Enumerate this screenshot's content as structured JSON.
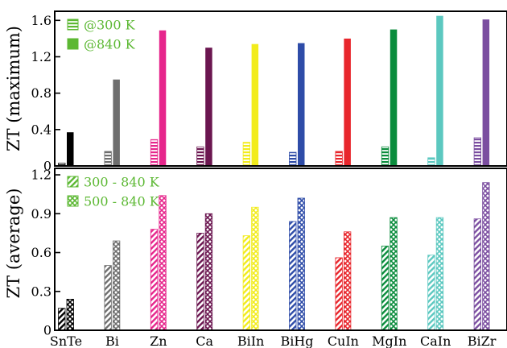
{
  "chart_data": [
    {
      "type": "bar",
      "ylabel": "ZT (maximum)",
      "ylim": [
        0,
        1.7
      ],
      "yticks": [
        "0",
        "0.4",
        "0.8",
        "1.2",
        "1.6"
      ],
      "ytick_values": [
        0,
        0.4,
        0.8,
        1.2,
        1.6
      ],
      "categories": [
        "SnTe",
        "Bi",
        "Zn",
        "Ca",
        "BiIn",
        "BiHg",
        "CuIn",
        "MgIn",
        "CaIn",
        "BiZr"
      ],
      "colors": [
        "#000000",
        "#6e6e6e",
        "#e6268c",
        "#6b1650",
        "#f2ec1c",
        "#2e4ca8",
        "#e8262c",
        "#0a8c3c",
        "#5cc8c0",
        "#7b4ea0"
      ],
      "legend_color": "#5cb833",
      "legend_placement": "top-left",
      "series": [
        {
          "name": "@300 K",
          "pattern": "horizontal-stripes",
          "values": [
            0.03,
            0.16,
            0.29,
            0.21,
            0.26,
            0.15,
            0.16,
            0.21,
            0.09,
            0.31
          ]
        },
        {
          "name": "@840 K",
          "pattern": "solid",
          "values": [
            0.37,
            0.95,
            1.49,
            1.3,
            1.34,
            1.35,
            1.4,
            1.5,
            1.65,
            1.61
          ]
        }
      ]
    },
    {
      "type": "bar",
      "ylabel": "ZT (average)",
      "ylim": [
        0,
        1.25
      ],
      "yticks": [
        "0",
        "0.3",
        "0.6",
        "0.9",
        "1.2"
      ],
      "ytick_values": [
        0,
        0.3,
        0.6,
        0.9,
        1.2
      ],
      "categories": [
        "SnTe",
        "Bi",
        "Zn",
        "Ca",
        "BiIn",
        "BiHg",
        "CuIn",
        "MgIn",
        "CaIn",
        "BiZr"
      ],
      "colors": [
        "#000000",
        "#6e6e6e",
        "#e6268c",
        "#6b1650",
        "#f2ec1c",
        "#2e4ca8",
        "#e8262c",
        "#0a8c3c",
        "#5cc8c0",
        "#7b4ea0"
      ],
      "legend_color": "#5cb833",
      "legend_placement": "top-left",
      "series": [
        {
          "name": "300 - 840 K",
          "pattern": "diagonal-stripes",
          "values": [
            0.17,
            0.5,
            0.78,
            0.75,
            0.73,
            0.84,
            0.56,
            0.65,
            0.58,
            0.86
          ]
        },
        {
          "name": "500 - 840 K",
          "pattern": "crosshatch",
          "values": [
            0.24,
            0.69,
            1.04,
            0.9,
            0.95,
            1.02,
            0.76,
            0.87,
            0.87,
            1.14
          ]
        }
      ]
    }
  ]
}
